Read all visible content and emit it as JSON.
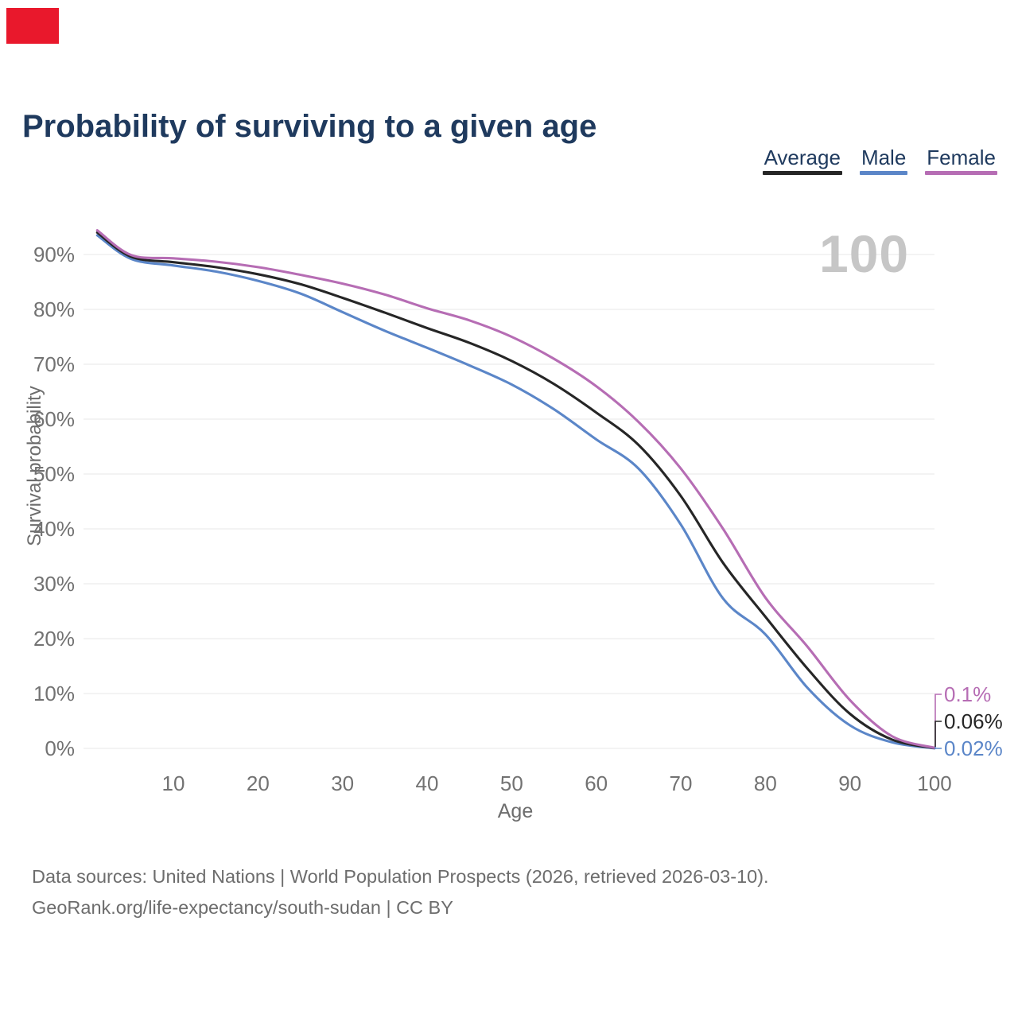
{
  "title": "Probability of surviving to a given age",
  "corner_marker": {
    "color": "#e9182c"
  },
  "legend": [
    {
      "label": "Average",
      "color": "#262626"
    },
    {
      "label": "Male",
      "color": "#5b86c8"
    },
    {
      "label": "Female",
      "color": "#b66db4"
    }
  ],
  "watermark": "100",
  "y_axis": {
    "label": "Survival probability",
    "ticks": [
      "0%",
      "10%",
      "20%",
      "30%",
      "40%",
      "50%",
      "60%",
      "70%",
      "80%",
      "90%"
    ]
  },
  "x_axis": {
    "label": "Age",
    "ticks": [
      10,
      20,
      30,
      40,
      50,
      60,
      70,
      80,
      90,
      100
    ]
  },
  "footer": {
    "line1": "Data sources: United Nations | World Population Prospects (2026, retrieved 2026-03-10).",
    "line2": "GeoRank.org/life-expectancy/south-sudan | CC BY"
  },
  "colors": {
    "grid": "#ececec",
    "tick_text": "#727272",
    "title_text": "#1f3a5e",
    "footer_text": "#6d6d6d",
    "watermark_text": "#c6c6c6"
  },
  "chart_data": {
    "type": "line",
    "title": "Probability of surviving to a given age",
    "xlabel": "Age",
    "ylabel": "Survival probability",
    "xlim": [
      0,
      105
    ],
    "ylim": [
      0,
      100
    ],
    "grid": "horizontal",
    "legend_position": "top-right",
    "hover_indicator_age": "100",
    "x": [
      1,
      5,
      10,
      15,
      20,
      25,
      30,
      35,
      40,
      45,
      50,
      55,
      60,
      65,
      70,
      75,
      80,
      85,
      90,
      95,
      100
    ],
    "series": [
      {
        "name": "Male",
        "color": "#5b86c8",
        "end_label": "0.02%",
        "values": [
          93.5,
          89.2,
          88.0,
          86.9,
          85.2,
          82.9,
          79.5,
          76.1,
          73.0,
          69.8,
          66.3,
          61.8,
          56.3,
          51.0,
          40.8,
          27.3,
          20.8,
          11.0,
          4.2,
          1.1,
          0.02
        ]
      },
      {
        "name": "Average",
        "color": "#262626",
        "end_label": "0.06%",
        "values": [
          94.0,
          89.6,
          88.6,
          87.7,
          86.4,
          84.6,
          82.1,
          79.4,
          76.6,
          73.9,
          70.6,
          66.4,
          61.2,
          55.3,
          46.0,
          33.8,
          24.0,
          14.5,
          6.3,
          1.6,
          0.06
        ]
      },
      {
        "name": "Female",
        "color": "#b66db4",
        "end_label": "0.1%",
        "values": [
          94.4,
          89.9,
          89.3,
          88.7,
          87.7,
          86.3,
          84.7,
          82.7,
          80.2,
          78.0,
          75.0,
          71.0,
          66.0,
          59.5,
          51.0,
          40.0,
          27.5,
          18.5,
          8.8,
          2.2,
          0.1
        ]
      }
    ]
  }
}
